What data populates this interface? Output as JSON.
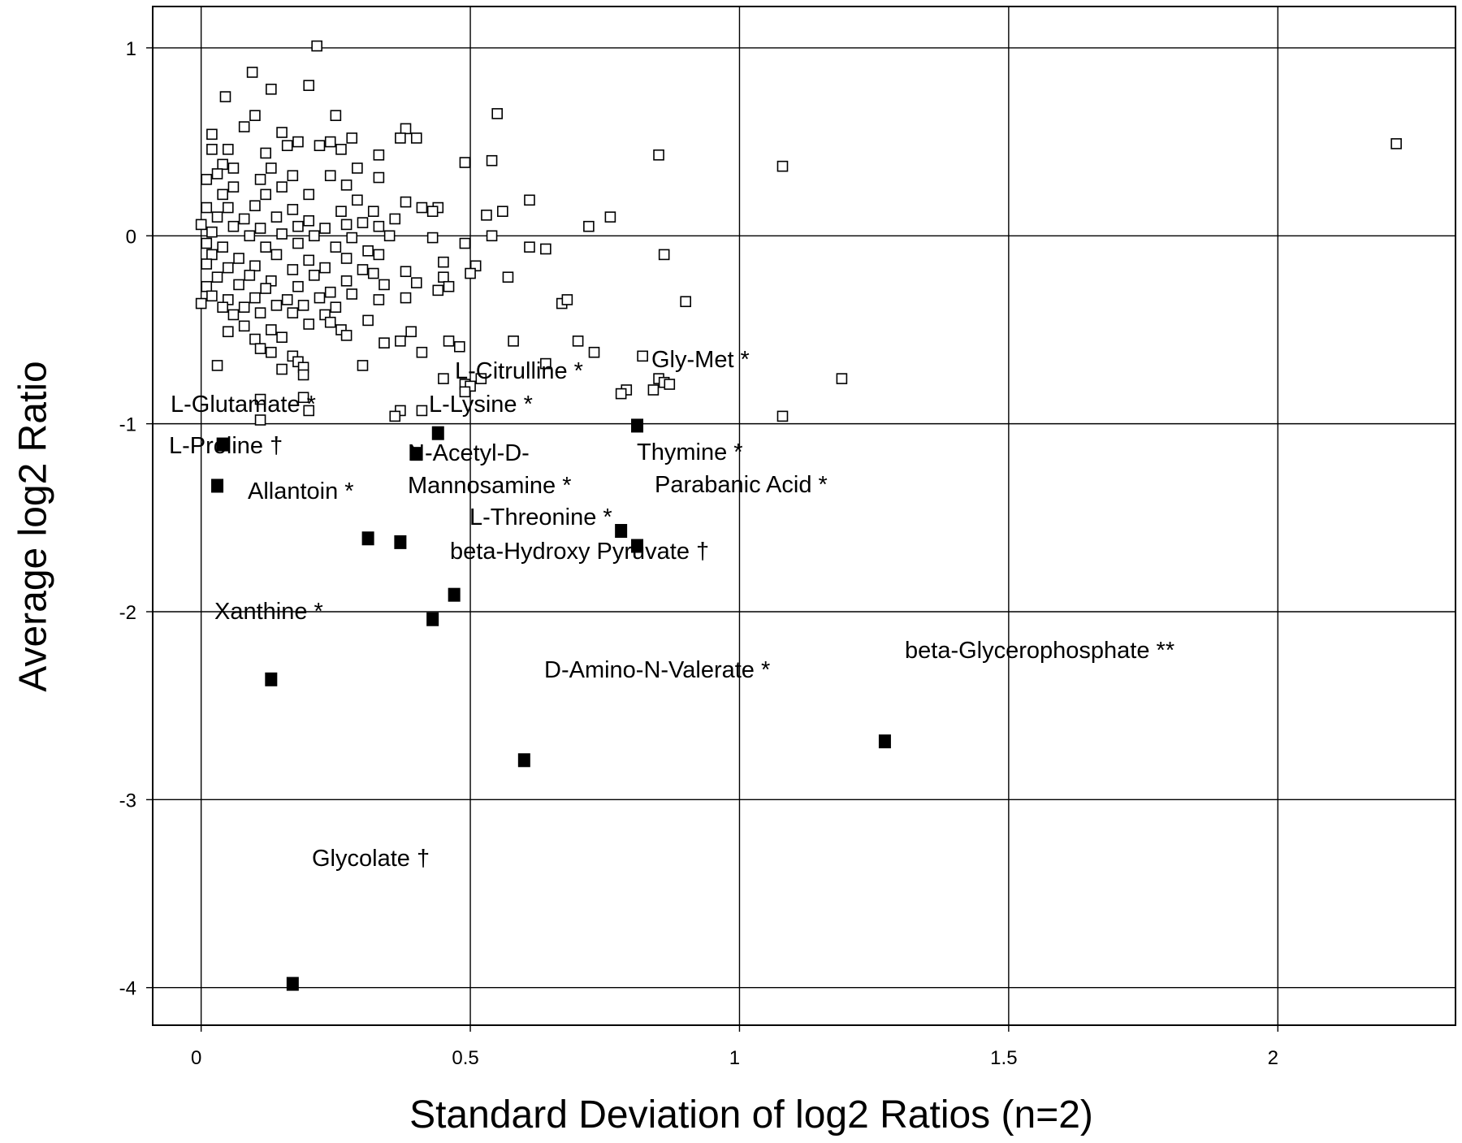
{
  "chart_data": {
    "type": "scatter",
    "title": "",
    "xlabel": "Standard Deviation of log2 Ratios (n=2)",
    "ylabel": "Average log2 Ratio",
    "xlim": [
      -0.09,
      2.33
    ],
    "ylim": [
      -4.2,
      1.22
    ],
    "xticks": [
      0,
      0.5,
      1,
      1.5,
      2
    ],
    "xtick_labels": [
      "0",
      "0.5",
      "1",
      "1.5",
      "2"
    ],
    "yticks": [
      1,
      0,
      -1,
      -2,
      -3,
      -4
    ],
    "ytick_labels": [
      "1",
      "0",
      "-1",
      "-2",
      "-3",
      "-4"
    ],
    "grid": true,
    "legend": false,
    "series": [
      {
        "marker": "open-square",
        "points": [
          [
            0.215,
            1.01
          ],
          [
            0.095,
            0.87
          ],
          [
            0.2,
            0.8
          ],
          [
            0.13,
            0.78
          ],
          [
            0.045,
            0.74
          ],
          [
            0.55,
            0.65
          ],
          [
            0.25,
            0.64
          ],
          [
            0.1,
            0.64
          ],
          [
            0.38,
            0.57
          ],
          [
            0.4,
            0.52
          ],
          [
            0.37,
            0.52
          ],
          [
            0.28,
            0.52
          ],
          [
            0.18,
            0.5
          ],
          [
            0.24,
            0.5
          ],
          [
            0.22,
            0.48
          ],
          [
            0.02,
            0.54
          ],
          [
            0.08,
            0.58
          ],
          [
            0.15,
            0.55
          ],
          [
            0.16,
            0.48
          ],
          [
            0.26,
            0.46
          ],
          [
            0.05,
            0.46
          ],
          [
            0.02,
            0.46
          ],
          [
            0.33,
            0.43
          ],
          [
            0.12,
            0.44
          ],
          [
            0.85,
            0.43
          ],
          [
            1.08,
            0.37
          ],
          [
            2.22,
            0.49
          ],
          [
            0.54,
            0.4
          ],
          [
            0.49,
            0.39
          ],
          [
            0.04,
            0.38
          ],
          [
            0.06,
            0.36
          ],
          [
            0.13,
            0.36
          ],
          [
            0.03,
            0.33
          ],
          [
            0.11,
            0.3
          ],
          [
            0.24,
            0.32
          ],
          [
            0.33,
            0.31
          ],
          [
            0.29,
            0.36
          ],
          [
            0.17,
            0.32
          ],
          [
            0.01,
            0.3
          ],
          [
            0.06,
            0.26
          ],
          [
            0.15,
            0.26
          ],
          [
            0.27,
            0.27
          ],
          [
            0.04,
            0.22
          ],
          [
            0.12,
            0.22
          ],
          [
            0.2,
            0.22
          ],
          [
            0.29,
            0.19
          ],
          [
            0.38,
            0.18
          ],
          [
            0.61,
            0.19
          ],
          [
            0.01,
            0.15
          ],
          [
            0.05,
            0.15
          ],
          [
            0.1,
            0.16
          ],
          [
            0.17,
            0.14
          ],
          [
            0.26,
            0.13
          ],
          [
            0.32,
            0.13
          ],
          [
            0.41,
            0.15
          ],
          [
            0.44,
            0.15
          ],
          [
            0.43,
            0.13
          ],
          [
            0.53,
            0.11
          ],
          [
            0.56,
            0.13
          ],
          [
            0.03,
            0.1
          ],
          [
            0.08,
            0.09
          ],
          [
            0.14,
            0.1
          ],
          [
            0.2,
            0.08
          ],
          [
            0.3,
            0.07
          ],
          [
            0.36,
            0.09
          ],
          [
            0.0,
            0.06
          ],
          [
            0.06,
            0.05
          ],
          [
            0.11,
            0.04
          ],
          [
            0.18,
            0.05
          ],
          [
            0.23,
            0.04
          ],
          [
            0.27,
            0.06
          ],
          [
            0.33,
            0.05
          ],
          [
            0.76,
            0.1
          ],
          [
            0.72,
            0.05
          ],
          [
            0.02,
            0.02
          ],
          [
            0.09,
            0.0
          ],
          [
            0.15,
            0.01
          ],
          [
            0.21,
            0.0
          ],
          [
            0.28,
            -0.01
          ],
          [
            0.35,
            0.0
          ],
          [
            0.43,
            -0.01
          ],
          [
            0.54,
            0.0
          ],
          [
            0.01,
            -0.04
          ],
          [
            0.04,
            -0.06
          ],
          [
            0.12,
            -0.06
          ],
          [
            0.18,
            -0.04
          ],
          [
            0.25,
            -0.06
          ],
          [
            0.31,
            -0.08
          ],
          [
            0.49,
            -0.04
          ],
          [
            0.61,
            -0.06
          ],
          [
            0.64,
            -0.07
          ],
          [
            0.86,
            -0.1
          ],
          [
            0.02,
            -0.1
          ],
          [
            0.07,
            -0.12
          ],
          [
            0.14,
            -0.1
          ],
          [
            0.2,
            -0.13
          ],
          [
            0.27,
            -0.12
          ],
          [
            0.33,
            -0.1
          ],
          [
            0.45,
            -0.14
          ],
          [
            0.01,
            -0.15
          ],
          [
            0.05,
            -0.17
          ],
          [
            0.1,
            -0.16
          ],
          [
            0.17,
            -0.18
          ],
          [
            0.23,
            -0.17
          ],
          [
            0.3,
            -0.18
          ],
          [
            0.51,
            -0.16
          ],
          [
            0.5,
            -0.2
          ],
          [
            0.03,
            -0.22
          ],
          [
            0.09,
            -0.21
          ],
          [
            0.13,
            -0.24
          ],
          [
            0.21,
            -0.21
          ],
          [
            0.27,
            -0.24
          ],
          [
            0.32,
            -0.2
          ],
          [
            0.45,
            -0.22
          ],
          [
            0.38,
            -0.19
          ],
          [
            0.57,
            -0.22
          ],
          [
            0.01,
            -0.27
          ],
          [
            0.07,
            -0.26
          ],
          [
            0.12,
            -0.28
          ],
          [
            0.18,
            -0.27
          ],
          [
            0.24,
            -0.3
          ],
          [
            0.34,
            -0.26
          ],
          [
            0.4,
            -0.25
          ],
          [
            0.46,
            -0.27
          ],
          [
            0.02,
            -0.32
          ],
          [
            0.05,
            -0.34
          ],
          [
            0.1,
            -0.33
          ],
          [
            0.16,
            -0.34
          ],
          [
            0.22,
            -0.33
          ],
          [
            0.28,
            -0.31
          ],
          [
            0.33,
            -0.34
          ],
          [
            0.44,
            -0.29
          ],
          [
            0.0,
            -0.36
          ],
          [
            0.04,
            -0.38
          ],
          [
            0.08,
            -0.38
          ],
          [
            0.14,
            -0.37
          ],
          [
            0.19,
            -0.37
          ],
          [
            0.25,
            -0.38
          ],
          [
            0.38,
            -0.33
          ],
          [
            0.67,
            -0.36
          ],
          [
            0.68,
            -0.34
          ],
          [
            0.9,
            -0.35
          ],
          [
            0.06,
            -0.42
          ],
          [
            0.11,
            -0.41
          ],
          [
            0.17,
            -0.41
          ],
          [
            0.23,
            -0.42
          ],
          [
            0.31,
            -0.45
          ],
          [
            0.08,
            -0.48
          ],
          [
            0.13,
            -0.5
          ],
          [
            0.2,
            -0.47
          ],
          [
            0.26,
            -0.5
          ],
          [
            0.39,
            -0.51
          ],
          [
            0.24,
            -0.46
          ],
          [
            0.05,
            -0.51
          ],
          [
            0.1,
            -0.55
          ],
          [
            0.15,
            -0.54
          ],
          [
            0.27,
            -0.53
          ],
          [
            0.34,
            -0.57
          ],
          [
            0.37,
            -0.56
          ],
          [
            0.41,
            -0.62
          ],
          [
            0.46,
            -0.56
          ],
          [
            0.48,
            -0.59
          ],
          [
            0.58,
            -0.56
          ],
          [
            0.7,
            -0.56
          ],
          [
            0.73,
            -0.62
          ],
          [
            0.11,
            -0.6
          ],
          [
            0.13,
            -0.62
          ],
          [
            0.17,
            -0.64
          ],
          [
            0.18,
            -0.67
          ],
          [
            0.3,
            -0.69
          ],
          [
            0.03,
            -0.69
          ],
          [
            0.19,
            -0.7
          ],
          [
            0.15,
            -0.71
          ],
          [
            0.19,
            -0.74
          ],
          [
            0.45,
            -0.76
          ],
          [
            0.49,
            -0.79
          ],
          [
            0.52,
            -0.76
          ],
          [
            0.64,
            -0.68
          ],
          [
            0.82,
            -0.64
          ],
          [
            0.85,
            -0.76
          ],
          [
            0.86,
            -0.78
          ],
          [
            0.87,
            -0.79
          ],
          [
            0.84,
            -0.82
          ],
          [
            0.79,
            -0.82
          ],
          [
            0.78,
            -0.84
          ],
          [
            0.5,
            -0.8
          ],
          [
            0.49,
            -0.83
          ],
          [
            1.19,
            -0.76
          ],
          [
            0.11,
            -0.87
          ],
          [
            0.19,
            -0.86
          ],
          [
            0.2,
            -0.93
          ],
          [
            0.37,
            -0.93
          ],
          [
            0.41,
            -0.93
          ],
          [
            0.36,
            -0.96
          ],
          [
            0.11,
            -0.98
          ],
          [
            1.08,
            -0.96
          ]
        ]
      },
      {
        "marker": "filled-square",
        "points": [
          {
            "x": 0.44,
            "y": -1.05,
            "label": "L-Citrulline *"
          },
          {
            "x": 0.81,
            "y": -1.01,
            "label": "Gly-Met *"
          },
          {
            "x": 0.04,
            "y": -1.11,
            "label": "L-Glutamate *"
          },
          {
            "x": 0.4,
            "y": -1.16,
            "label": "L-Lysine *"
          },
          {
            "x": 0.03,
            "y": -1.33,
            "label": "L-Proline †"
          },
          {
            "x": 0.78,
            "y": -1.57,
            "label": "Thymine *"
          },
          {
            "x": 0.31,
            "y": -1.61,
            "label": "Allantoin *"
          },
          {
            "x": 0.37,
            "y": -1.63,
            "label": "N-Acetyl-D- Mannosamine *"
          },
          {
            "x": 0.81,
            "y": -1.65,
            "label": "Parabanic Acid *"
          },
          {
            "x": 0.47,
            "y": -1.91,
            "label": "L-Threonine *"
          },
          {
            "x": 0.43,
            "y": -2.04,
            "label": "beta-Hydroxy Pyruvate †"
          },
          {
            "x": 0.13,
            "y": -2.36,
            "label": "Xanthine *"
          },
          {
            "x": 1.27,
            "y": -2.69,
            "label": "beta-Glycerophosphate **"
          },
          {
            "x": 0.6,
            "y": -2.79,
            "label": "D-Amino-N-Valerate *"
          },
          {
            "x": 0.17,
            "y": -3.98,
            "label": "Glycolate †"
          }
        ]
      }
    ]
  },
  "annotations": [
    {
      "lines": [
        "L-Citrulline *"
      ],
      "dx": 560,
      "dy": 466,
      "anchor": "start"
    },
    {
      "lines": [
        "Gly-Met *"
      ],
      "dx": 802,
      "dy": 452,
      "anchor": "start"
    },
    {
      "lines": [
        "L-Glutamate *"
      ],
      "dx": 210,
      "dy": 507,
      "anchor": "start"
    },
    {
      "lines": [
        "L-Lysine *"
      ],
      "dx": 528,
      "dy": 507,
      "anchor": "start"
    },
    {
      "lines": [
        "L-Proline †"
      ],
      "dx": 208,
      "dy": 558,
      "anchor": "start"
    },
    {
      "lines": [
        "Thymine *"
      ],
      "dx": 784,
      "dy": 566,
      "anchor": "start"
    },
    {
      "lines": [
        "N-Acetyl-D-",
        "Mannosamine *"
      ],
      "dx": 502,
      "dy": 567,
      "anchor": "start"
    },
    {
      "lines": [
        "Allantoin *"
      ],
      "dx": 305,
      "dy": 614,
      "anchor": "start"
    },
    {
      "lines": [
        "Parabanic Acid *"
      ],
      "dx": 806,
      "dy": 606,
      "anchor": "start"
    },
    {
      "lines": [
        "L-Threonine *"
      ],
      "dx": 578,
      "dy": 646,
      "anchor": "start"
    },
    {
      "lines": [
        "beta-Hydroxy Pyruvate †"
      ],
      "dx": 554,
      "dy": 688,
      "anchor": "start"
    },
    {
      "lines": [
        "Xanthine *"
      ],
      "dx": 264,
      "dy": 762,
      "anchor": "start"
    },
    {
      "lines": [
        "beta-Glycerophosphate **"
      ],
      "dx": 1114,
      "dy": 810,
      "anchor": "start"
    },
    {
      "lines": [
        "D-Amino-N-Valerate *"
      ],
      "dx": 670,
      "dy": 834,
      "anchor": "start"
    },
    {
      "lines": [
        "Glycolate †"
      ],
      "dx": 384,
      "dy": 1066,
      "anchor": "start"
    }
  ]
}
